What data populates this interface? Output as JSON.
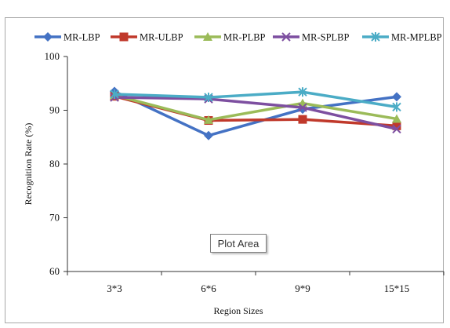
{
  "chart_data": {
    "type": "line",
    "title": "",
    "xlabel": "Region Sizes",
    "ylabel": "Recognition Rate (%)",
    "categories": [
      "3*3",
      "6*6",
      "9*9",
      "15*15"
    ],
    "ylim": [
      60,
      100
    ],
    "yticks": [
      60,
      70,
      80,
      90,
      100
    ],
    "grid": false,
    "legend_position": "top",
    "series": [
      {
        "name": "MR-LBP",
        "color": "#4472C4",
        "marker": "diamond",
        "values": [
          93.5,
          85.3,
          90.2,
          92.5
        ]
      },
      {
        "name": "MR-ULBP",
        "color": "#C0392B",
        "marker": "square",
        "values": [
          92.6,
          88.1,
          88.3,
          87.1
        ]
      },
      {
        "name": "MR-PLBP",
        "color": "#9BBB59",
        "marker": "triangle",
        "values": [
          92.8,
          88.2,
          91.3,
          88.4
        ]
      },
      {
        "name": "MR-SPLBP",
        "color": "#7D4FA0",
        "marker": "x",
        "values": [
          92.4,
          92.1,
          90.5,
          86.5
        ]
      },
      {
        "name": "MR-MPLBP",
        "color": "#4BACC6",
        "marker": "star",
        "values": [
          93.0,
          92.4,
          93.4,
          90.6
        ]
      }
    ]
  },
  "tooltip": {
    "text": "Plot Area"
  }
}
